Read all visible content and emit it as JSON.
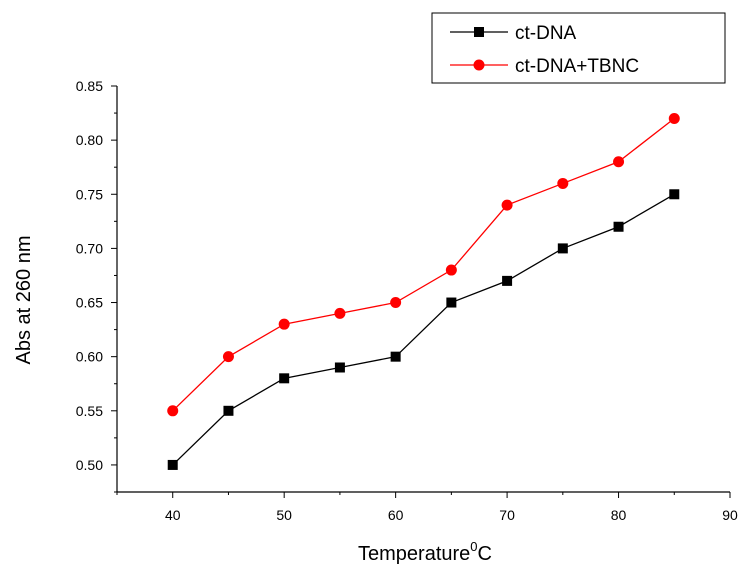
{
  "chart_data": {
    "type": "line",
    "title": "",
    "xlabel": "Temperature",
    "xlabel_sup": "0",
    "xlabel_unit": "C",
    "ylabel": "Abs at 260 nm",
    "xlim": [
      35,
      90
    ],
    "ylim": [
      0.475,
      0.85
    ],
    "x_ticks": [
      40,
      50,
      60,
      70,
      80,
      90
    ],
    "y_ticks": [
      0.5,
      0.55,
      0.6,
      0.65,
      0.7,
      0.75,
      0.8,
      0.85
    ],
    "grid": false,
    "legend_position": "top-right",
    "x": [
      40,
      45,
      50,
      55,
      60,
      65,
      70,
      75,
      80,
      85
    ],
    "series": [
      {
        "name": "ct-DNA",
        "color": "#000000",
        "marker": "square",
        "values": [
          0.5,
          0.55,
          0.58,
          0.59,
          0.6,
          0.65,
          0.67,
          0.7,
          0.72,
          0.75
        ]
      },
      {
        "name": "ct-DNA+TBNC",
        "color": "#ff0000",
        "marker": "circle",
        "values": [
          0.55,
          0.6,
          0.63,
          0.64,
          0.65,
          0.68,
          0.74,
          0.76,
          0.78,
          0.82
        ]
      }
    ]
  }
}
